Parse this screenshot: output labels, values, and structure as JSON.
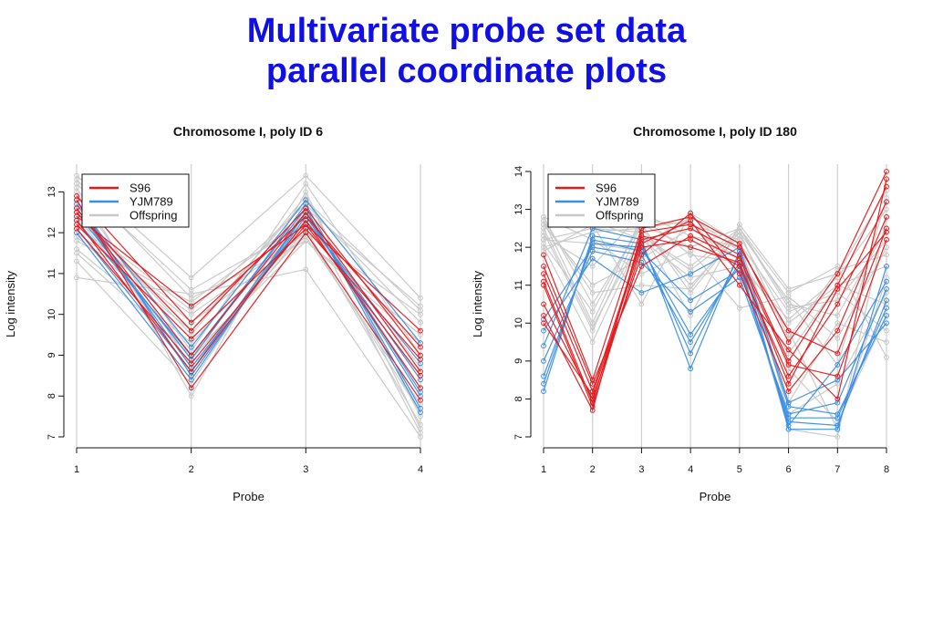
{
  "slide": {
    "title_line1": "Multivariate probe set data",
    "title_line2": "parallel coordinate plots"
  },
  "colors": {
    "title": "#1010e6",
    "S96": "#e31a1c",
    "YJM789": "#3a8ee6",
    "Offspring": "#c8c8c8"
  },
  "chart_data": [
    {
      "type": "line",
      "title": "Chromosome I, poly ID 6",
      "xlabel": "Probe",
      "ylabel": "Log intensity",
      "x": [
        1,
        2,
        3,
        4
      ],
      "ylim": [
        7,
        13.5
      ],
      "yticks": [
        7,
        8,
        9,
        10,
        11,
        12,
        13
      ],
      "grid": "vertical",
      "legend": {
        "placement": "top-left",
        "entries": [
          "S96",
          "YJM789",
          "Offspring"
        ]
      },
      "series": [
        {
          "name": "S96",
          "color": "#e31a1c",
          "lines": [
            [
              12.4,
              10.2,
              12.2,
              9.6
            ],
            [
              12.9,
              9.8,
              12.4,
              9.2
            ],
            [
              12.2,
              9.4,
              12.1,
              8.9
            ],
            [
              12.6,
              9.0,
              12.5,
              8.6
            ],
            [
              12.3,
              8.6,
              12.3,
              8.2
            ],
            [
              12.8,
              8.2,
              12.0,
              7.9
            ],
            [
              12.5,
              9.6,
              12.6,
              9.0
            ],
            [
              12.1,
              8.8,
              12.2,
              8.5
            ]
          ]
        },
        {
          "name": "YJM789",
          "color": "#3a8ee6",
          "lines": [
            [
              12.7,
              9.2,
              12.8,
              9.3
            ],
            [
              12.1,
              8.6,
              12.5,
              8.0
            ],
            [
              12.5,
              8.9,
              12.7,
              7.7
            ],
            [
              12.8,
              8.5,
              12.4,
              8.4
            ],
            [
              12.3,
              9.0,
              12.6,
              7.6
            ],
            [
              12.6,
              8.7,
              12.3,
              8.8
            ],
            [
              12.0,
              8.4,
              12.5,
              8.1
            ]
          ]
        },
        {
          "name": "Offspring",
          "color": "#c8c8c8",
          "lines": [
            [
              13.4,
              10.9,
              13.4,
              10.4
            ],
            [
              10.9,
              10.5,
              11.1,
              7.0
            ],
            [
              12.0,
              10.0,
              12.0,
              10.0
            ],
            [
              13.0,
              8.0,
              13.0,
              7.2
            ],
            [
              11.5,
              9.0,
              11.8,
              9.5
            ],
            [
              12.5,
              9.5,
              12.9,
              7.5
            ],
            [
              13.2,
              10.6,
              12.2,
              8.5
            ],
            [
              11.3,
              8.3,
              12.6,
              10.2
            ],
            [
              12.2,
              9.8,
              11.9,
              7.8
            ],
            [
              12.9,
              9.1,
              13.2,
              9.0
            ],
            [
              11.8,
              10.3,
              12.4,
              8.2
            ],
            [
              13.1,
              8.7,
              12.1,
              7.3
            ],
            [
              12.3,
              10.1,
              12.7,
              9.8
            ],
            [
              11.6,
              9.3,
              12.3,
              8.7
            ],
            [
              12.7,
              8.5,
              12.5,
              7.1
            ],
            [
              13.3,
              10.4,
              11.8,
              9.3
            ],
            [
              11.9,
              9.6,
              12.8,
              10.1
            ],
            [
              12.4,
              8.9,
              12.0,
              7.6
            ]
          ]
        }
      ]
    },
    {
      "type": "line",
      "title": "Chromosome I, poly ID 180",
      "xlabel": "Probe",
      "ylabel": "Log intensity",
      "x": [
        1,
        2,
        3,
        4,
        5,
        6,
        7,
        8
      ],
      "ylim": [
        7,
        14
      ],
      "yticks": [
        7,
        8,
        9,
        10,
        11,
        12,
        13,
        14
      ],
      "grid": "vertical",
      "legend": {
        "placement": "top-left",
        "entries": [
          "S96",
          "YJM789",
          "Offspring"
        ]
      },
      "series": [
        {
          "name": "S96",
          "color": "#e31a1c",
          "lines": [
            [
              11.8,
              8.5,
              12.5,
              12.8,
              12.1,
              9.5,
              11.3,
              14.0
            ],
            [
              11.3,
              8.2,
              12.2,
              12.5,
              11.8,
              9.0,
              11.0,
              13.6
            ],
            [
              11.0,
              7.8,
              12.0,
              12.2,
              11.5,
              8.6,
              10.5,
              13.2
            ],
            [
              10.5,
              8.0,
              11.8,
              12.9,
              11.3,
              8.2,
              9.8,
              12.8
            ],
            [
              10.2,
              7.7,
              12.4,
              12.6,
              12.0,
              9.8,
              9.2,
              12.5
            ],
            [
              11.5,
              8.4,
              11.5,
              12.3,
              11.7,
              8.9,
              8.6,
              12.2
            ],
            [
              10.0,
              8.1,
              12.1,
              12.7,
              11.0,
              9.3,
              8.0,
              13.8
            ],
            [
              11.1,
              7.9,
              12.3,
              12.0,
              11.6,
              8.4,
              10.9,
              12.4
            ]
          ]
        },
        {
          "name": "YJM789",
          "color": "#3a8ee6",
          "lines": [
            [
              8.2,
              12.3,
              12.1,
              9.2,
              11.8,
              7.8,
              7.6,
              10.2
            ],
            [
              8.6,
              12.1,
              12.0,
              9.7,
              11.5,
              7.4,
              7.3,
              10.6
            ],
            [
              9.0,
              11.9,
              11.6,
              10.3,
              11.2,
              7.6,
              7.9,
              10.9
            ],
            [
              9.4,
              12.5,
              12.2,
              8.8,
              11.9,
              7.2,
              7.2,
              11.5
            ],
            [
              9.8,
              11.7,
              10.8,
              11.3,
              12.0,
              7.9,
              8.5,
              10.0
            ],
            [
              8.4,
              12.2,
              11.9,
              10.6,
              11.4,
              7.5,
              7.5,
              10.4
            ],
            [
              10.1,
              12.0,
              11.8,
              9.5,
              11.6,
              7.3,
              8.9,
              11.1
            ]
          ]
        },
        {
          "name": "Offspring",
          "color": "#c8c8c8",
          "lines": [
            [
              12.8,
              10.5,
              12.6,
              12.0,
              12.5,
              10.8,
              11.5,
              9.1
            ],
            [
              12.5,
              12.8,
              12.5,
              11.0,
              12.3,
              10.0,
              11.0,
              10.5
            ],
            [
              12.0,
              9.5,
              12.3,
              11.5,
              12.5,
              10.5,
              10.2,
              12.5
            ],
            [
              12.6,
              11.0,
              11.7,
              12.5,
              11.7,
              9.8,
              7.2,
              11.2
            ],
            [
              12.2,
              12.5,
              12.4,
              10.2,
              12.6,
              10.9,
              11.3,
              13.5
            ],
            [
              12.7,
              10.0,
              12.8,
              11.8,
              11.6,
              7.2,
              7.0,
              12.8
            ],
            [
              11.9,
              12.6,
              10.5,
              12.9,
              12.1,
              10.3,
              10.8,
              9.8
            ],
            [
              12.4,
              9.8,
              12.6,
              10.8,
              12.4,
              9.6,
              11.4,
              11.8
            ],
            [
              12.8,
              12.2,
              11.3,
              11.9,
              10.4,
              10.7,
              9.6,
              12.0
            ],
            [
              12.1,
              10.3,
              12.7,
              12.6,
              12.2,
              7.6,
              8.4,
              10.8
            ],
            [
              12.6,
              12.7,
              12.2,
              11.2,
              11.5,
              10.1,
              11.2,
              13.0
            ],
            [
              12.3,
              11.5,
              12.9,
              12.3,
              12.0,
              8.8,
              7.4,
              10.2
            ],
            [
              12.7,
              10.8,
              11.0,
              10.9,
              12.5,
              10.4,
              10.6,
              12.2
            ],
            [
              12.0,
              12.4,
              12.5,
              12.7,
              11.3,
              9.2,
              11.0,
              11.5
            ],
            [
              12.5,
              9.9,
              12.3,
              11.4,
              12.4,
              10.6,
              8.9,
              13.3
            ],
            [
              12.2,
              12.1,
              11.9,
              12.8,
              11.9,
              7.9,
              10.0,
              9.5
            ]
          ]
        }
      ]
    }
  ]
}
